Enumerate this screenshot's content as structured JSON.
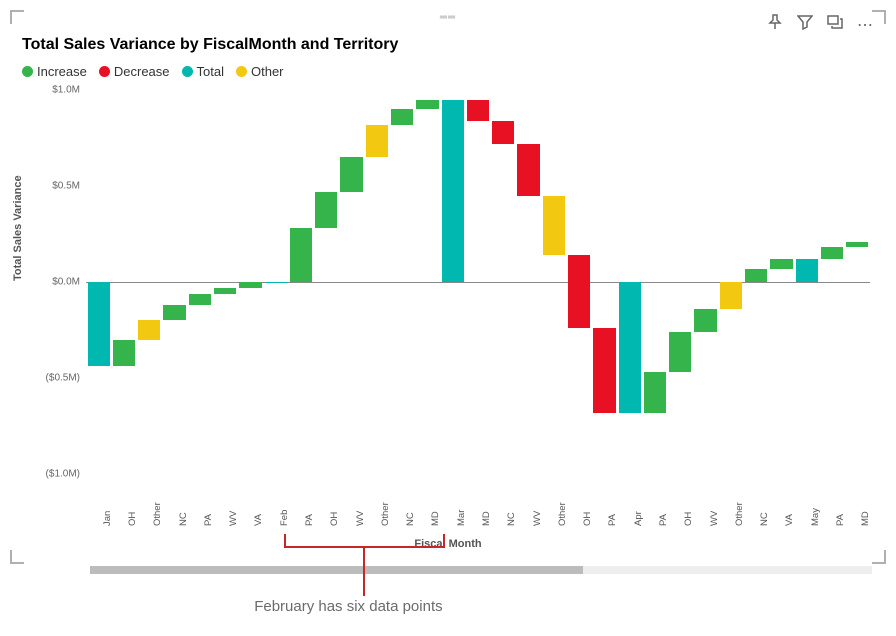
{
  "title": "Total Sales Variance by FiscalMonth and Territory",
  "toolbar": {
    "pin": "pin-icon",
    "filter": "filter-icon",
    "focus": "focus-icon",
    "more": "⋯"
  },
  "legend": [
    {
      "label": "Increase",
      "color": "#34b44a"
    },
    {
      "label": "Decrease",
      "color": "#e81123"
    },
    {
      "label": "Total",
      "color": "#00b8b0"
    },
    {
      "label": "Other",
      "color": "#f2c811"
    }
  ],
  "y_axis": {
    "label": "Total Sales Variance",
    "min": -1.0,
    "max": 1.0,
    "ticks": [
      {
        "v": 1.0,
        "label": "$1.0M"
      },
      {
        "v": 0.5,
        "label": "$0.5M"
      },
      {
        "v": 0.0,
        "label": "$0.0M"
      },
      {
        "v": -0.5,
        "label": "($0.5M)"
      },
      {
        "v": -1.0,
        "label": "($1.0M)"
      }
    ],
    "tick_fontsize": 10
  },
  "x_axis": {
    "label": "Fiscal Month",
    "label_fontsize": 11
  },
  "colors": {
    "increase": "#34b44a",
    "decrease": "#e81123",
    "total": "#00b8b0",
    "other": "#f2c811",
    "zero_line": "#888888",
    "background": "#ffffff",
    "grid": "#e6e6e6",
    "text": "#555555",
    "scrollbar_track": "#eeeeee",
    "scrollbar_thumb": "#bcbcbc",
    "annotation": "#c62828",
    "annotation_text": "#6b6b6b",
    "corner": "#b0b0b0"
  },
  "plot": {
    "bar_gap_ratio": 0.12
  },
  "bars": [
    {
      "label": "Jan",
      "start": 0.0,
      "end": -0.44,
      "kind": "total"
    },
    {
      "label": "OH",
      "start": -0.44,
      "end": -0.3,
      "kind": "increase"
    },
    {
      "label": "Other",
      "start": -0.3,
      "end": -0.2,
      "kind": "other"
    },
    {
      "label": "NC",
      "start": -0.2,
      "end": -0.12,
      "kind": "increase"
    },
    {
      "label": "PA",
      "start": -0.12,
      "end": -0.06,
      "kind": "increase"
    },
    {
      "label": "WV",
      "start": -0.06,
      "end": -0.03,
      "kind": "increase"
    },
    {
      "label": "VA",
      "start": -0.03,
      "end": 0.0,
      "kind": "increase"
    },
    {
      "label": "Feb",
      "start": 0.0,
      "end": 0.0,
      "kind": "total"
    },
    {
      "label": "PA",
      "start": 0.0,
      "end": 0.28,
      "kind": "increase"
    },
    {
      "label": "OH",
      "start": 0.28,
      "end": 0.47,
      "kind": "increase"
    },
    {
      "label": "WV",
      "start": 0.47,
      "end": 0.65,
      "kind": "increase"
    },
    {
      "label": "Other",
      "start": 0.65,
      "end": 0.82,
      "kind": "other"
    },
    {
      "label": "NC",
      "start": 0.82,
      "end": 0.9,
      "kind": "increase"
    },
    {
      "label": "MD",
      "start": 0.9,
      "end": 0.95,
      "kind": "increase"
    },
    {
      "label": "Mar",
      "start": 0.0,
      "end": 0.95,
      "kind": "total"
    },
    {
      "label": "MD",
      "start": 0.95,
      "end": 0.84,
      "kind": "decrease"
    },
    {
      "label": "NC",
      "start": 0.84,
      "end": 0.72,
      "kind": "decrease"
    },
    {
      "label": "WV",
      "start": 0.72,
      "end": 0.45,
      "kind": "decrease"
    },
    {
      "label": "Other",
      "start": 0.45,
      "end": 0.14,
      "kind": "other"
    },
    {
      "label": "OH",
      "start": 0.14,
      "end": -0.24,
      "kind": "decrease"
    },
    {
      "label": "PA",
      "start": -0.24,
      "end": -0.68,
      "kind": "decrease"
    },
    {
      "label": "Apr",
      "start": 0.0,
      "end": -0.68,
      "kind": "total"
    },
    {
      "label": "PA",
      "start": -0.68,
      "end": -0.47,
      "kind": "increase"
    },
    {
      "label": "OH",
      "start": -0.47,
      "end": -0.26,
      "kind": "increase"
    },
    {
      "label": "WV",
      "start": -0.26,
      "end": -0.14,
      "kind": "increase"
    },
    {
      "label": "Other",
      "start": -0.14,
      "end": 0.0,
      "kind": "other"
    },
    {
      "label": "NC",
      "start": 0.0,
      "end": 0.07,
      "kind": "increase"
    },
    {
      "label": "VA",
      "start": 0.07,
      "end": 0.12,
      "kind": "increase"
    },
    {
      "label": "May",
      "start": 0.0,
      "end": 0.12,
      "kind": "total"
    },
    {
      "label": "PA",
      "start": 0.12,
      "end": 0.18,
      "kind": "increase"
    },
    {
      "label": "MD",
      "start": 0.18,
      "end": 0.21,
      "kind": "increase"
    }
  ],
  "annotation": {
    "text": "February has six data points",
    "bar_start_index": 8,
    "bar_end_index": 13
  },
  "scrollbar": {
    "thumb_pct": 63
  }
}
